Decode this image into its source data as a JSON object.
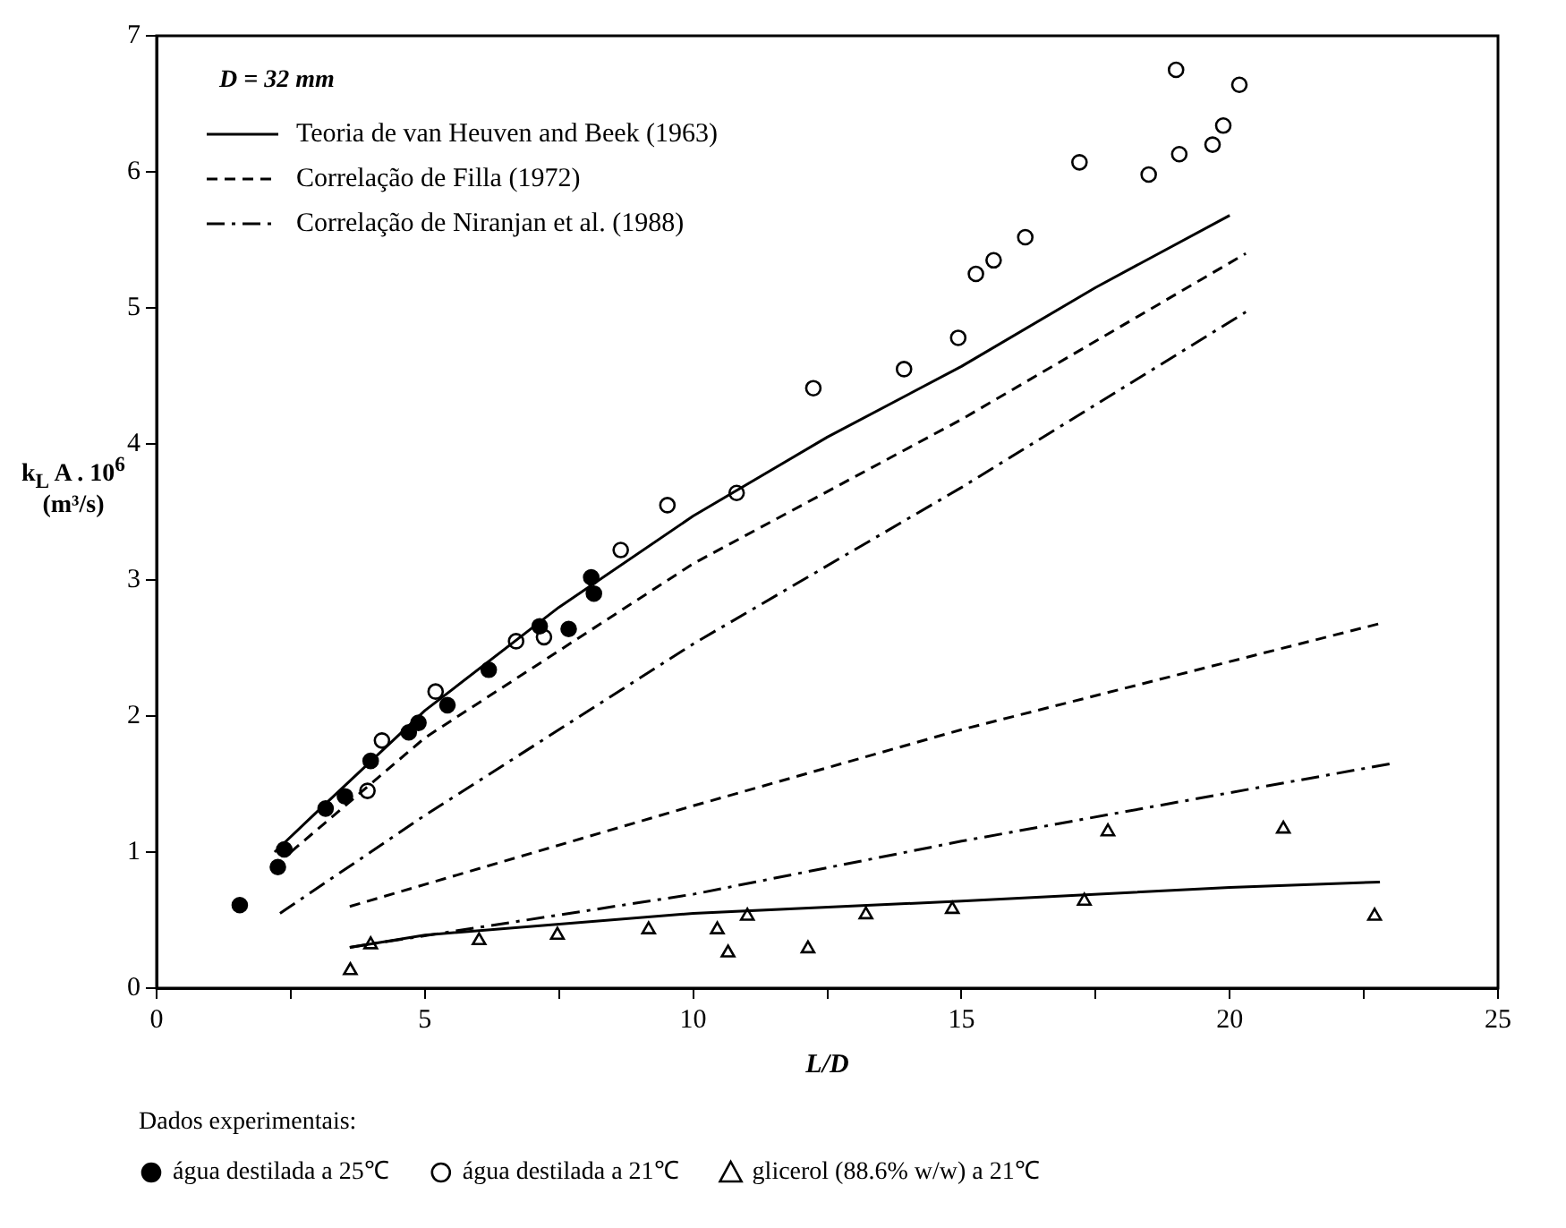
{
  "chart_data": {
    "type": "line",
    "xlabel": "L/D",
    "ylabel": "k$_{L}$ A . 10$^{6}$ (m³/s)",
    "legend_title": "Dados experimentais:",
    "annotations": [
      "D = 32 mm"
    ],
    "xlim": [
      0,
      25
    ],
    "xticks": [
      0,
      {
        "value": 2.5,
        "label": null
      },
      5,
      {
        "value": 7.5,
        "label": null
      },
      10,
      {
        "value": 12.5,
        "label": null
      },
      15,
      {
        "value": 17.5,
        "label": null
      },
      20,
      {
        "value": 22.5,
        "label": null
      },
      25
    ],
    "ylim": [
      0,
      7
    ],
    "yticks": [
      0,
      1,
      2,
      3,
      4,
      5,
      6,
      7
    ],
    "grid": false,
    "legend": "left",
    "series": [
      {
        "name": "Teoria de van Heuven and Beek (1963)",
        "color": "#000000",
        "line_style": "solid",
        "marker": "none",
        "x": [
          2.2,
          3,
          5,
          7.5,
          10,
          12.5,
          15,
          17.5,
          20
        ],
        "values": [
          1.0,
          1.3,
          2.04,
          2.8,
          3.47,
          4.05,
          4.57,
          5.15,
          5.68
        ]
      },
      {
        "name": "Correlação de Filla (1972)",
        "color": "#000000",
        "line_style": "dashed",
        "marker": "none",
        "x": [
          2.5,
          5,
          10,
          15,
          20.3
        ],
        "values": [
          1.0,
          1.84,
          3.12,
          4.18,
          5.4
        ]
      },
      {
        "name": "Correlação de Niranjan et al. (1988)",
        "color": "#000000",
        "line_style": "dashdot",
        "marker": "none",
        "x": [
          2.3,
          5,
          10,
          15,
          20.3
        ],
        "values": [
          0.55,
          1.27,
          2.53,
          3.68,
          4.97
        ]
      },
      {
        "type": "line",
        "color": "#000000",
        "line_style": "solid",
        "marker": "none",
        "x": [
          3.6,
          5,
          10,
          15,
          20,
          22.8
        ],
        "values": [
          0.3,
          0.39,
          0.55,
          0.64,
          0.74,
          0.78
        ]
      },
      {
        "type": "line",
        "color": "#000000",
        "line_style": "dashed",
        "marker": "none",
        "x": [
          3.6,
          10,
          15,
          22.8
        ],
        "values": [
          0.6,
          1.34,
          1.9,
          2.68
        ]
      },
      {
        "type": "line",
        "color": "#000000",
        "line_style": "dashdot",
        "marker": "none",
        "x": [
          3.6,
          10,
          15,
          23
        ],
        "values": [
          0.3,
          0.69,
          1.08,
          1.65
        ]
      },
      {
        "name": "água destilada a 25℃",
        "type": "scatter",
        "color": "#000000",
        "marker": "circle",
        "x": [
          1.55,
          2.26,
          2.38,
          3.15,
          3.51,
          3.99,
          4.7,
          4.88,
          5.42,
          6.19,
          7.14,
          7.68,
          8.1,
          8.15
        ],
        "values": [
          0.61,
          0.89,
          1.02,
          1.32,
          1.41,
          1.67,
          1.88,
          1.95,
          2.08,
          2.34,
          2.66,
          2.64,
          3.02,
          2.9
        ]
      },
      {
        "name": "água destilada a 21℃",
        "type": "scatter",
        "color": "#ffffff",
        "marker": "circle",
        "x": [
          3.93,
          4.2,
          5.2,
          6.7,
          7.22,
          8.65,
          9.52,
          10.81,
          12.24,
          13.93,
          14.94,
          15.27,
          15.6,
          16.19,
          17.2,
          18.49,
          19.0,
          19.06,
          19.68,
          19.88,
          20.18
        ],
        "values": [
          1.45,
          1.82,
          2.18,
          2.55,
          2.58,
          3.22,
          3.55,
          3.64,
          4.41,
          4.55,
          4.78,
          5.25,
          5.35,
          5.52,
          6.07,
          5.98,
          6.75,
          6.13,
          6.2,
          6.34,
          6.64
        ]
      },
      {
        "name": "glicerol (88.6% w/w) a 21℃",
        "type": "scatter",
        "color": "#ffffff",
        "marker": "triangle",
        "x": [
          3.61,
          3.99,
          6.01,
          7.47,
          9.17,
          10.45,
          10.65,
          11.01,
          12.14,
          13.22,
          14.83,
          17.29,
          17.73,
          21.0,
          22.7
        ],
        "values": [
          0.13,
          0.32,
          0.35,
          0.39,
          0.43,
          0.43,
          0.26,
          0.53,
          0.29,
          0.54,
          0.58,
          0.64,
          1.15,
          1.17,
          0.53
        ]
      }
    ]
  }
}
